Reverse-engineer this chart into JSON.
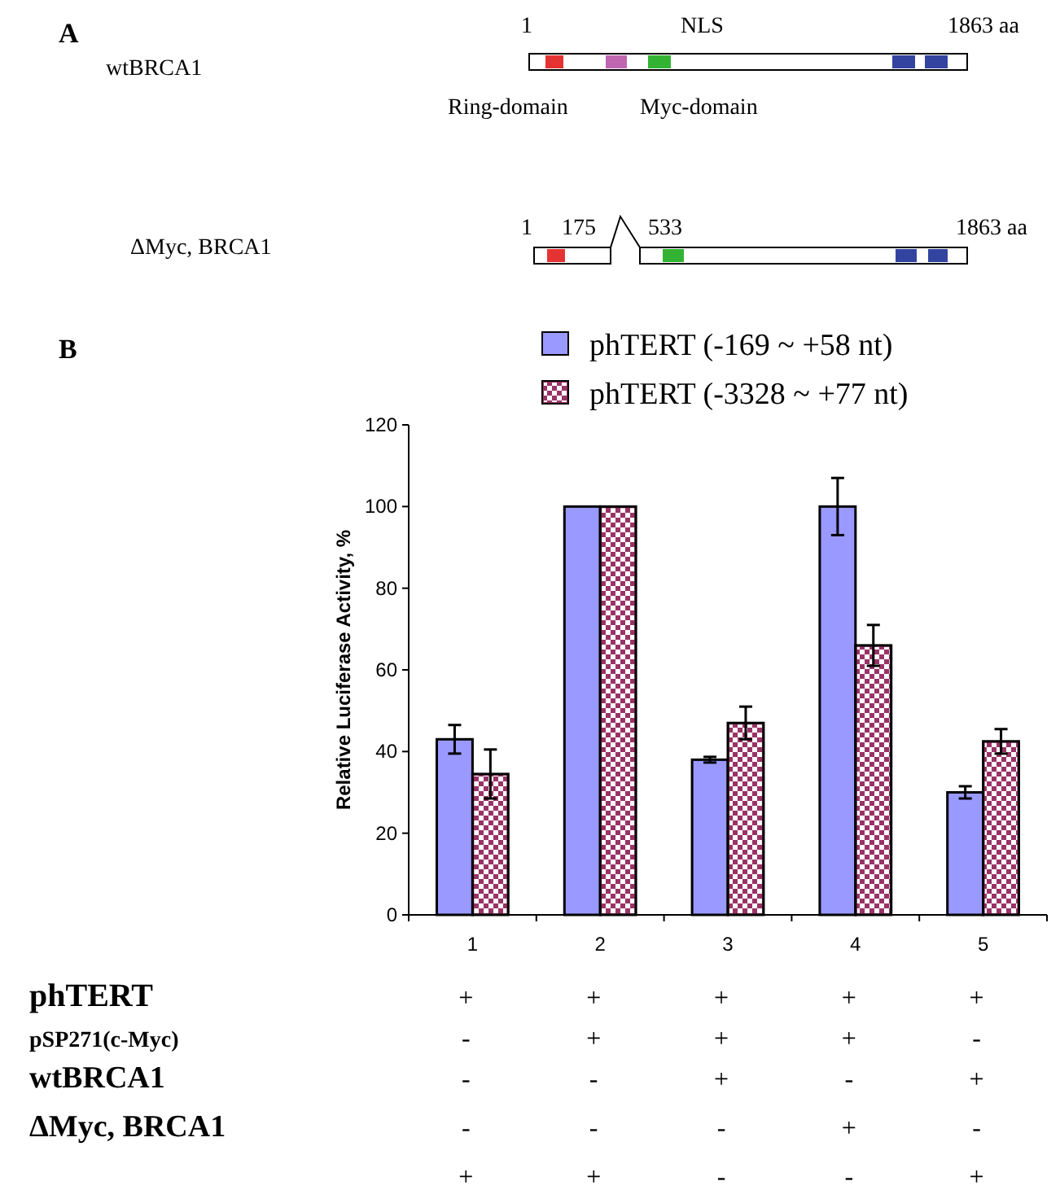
{
  "chart_data": {
    "type": "bar",
    "ylabel": "Relative  Luciferase Activity, %",
    "categories": [
      "1",
      "2",
      "3",
      "4",
      "5"
    ],
    "ylim": [
      0,
      120
    ],
    "yticks": [
      0,
      20,
      40,
      60,
      80,
      100,
      120
    ],
    "legend": "top",
    "grid": false,
    "series": [
      {
        "name": "phTERT (-169 ~ +58 nt)",
        "color": "#9999ff",
        "values": [
          43,
          100,
          38,
          100,
          30
        ],
        "errors": [
          3.5,
          null,
          0.7,
          7,
          1.5
        ]
      },
      {
        "name": "phTERT (-3328 ~ +77 nt)",
        "color": "#993366",
        "values": [
          34.5,
          100,
          47,
          66,
          42.5
        ],
        "errors": [
          6,
          null,
          4,
          5,
          3
        ]
      }
    ],
    "annotations": [
      "A",
      "1",
      "NLS",
      "1863 aa",
      "wtBRCA1",
      "Ring-domain",
      "Myc-domain",
      "1",
      "175",
      "533",
      "1863 aa",
      "ΔMyc, BRCA1",
      "B",
      "phTERT",
      "+ + + + +",
      "pSP271(c-Myc)",
      "- + + + -",
      "wtBRCA1",
      "- - + - +",
      "ΔMyc, BRCA1",
      "- - - + -",
      "+ + - - +"
    ]
  }
}
